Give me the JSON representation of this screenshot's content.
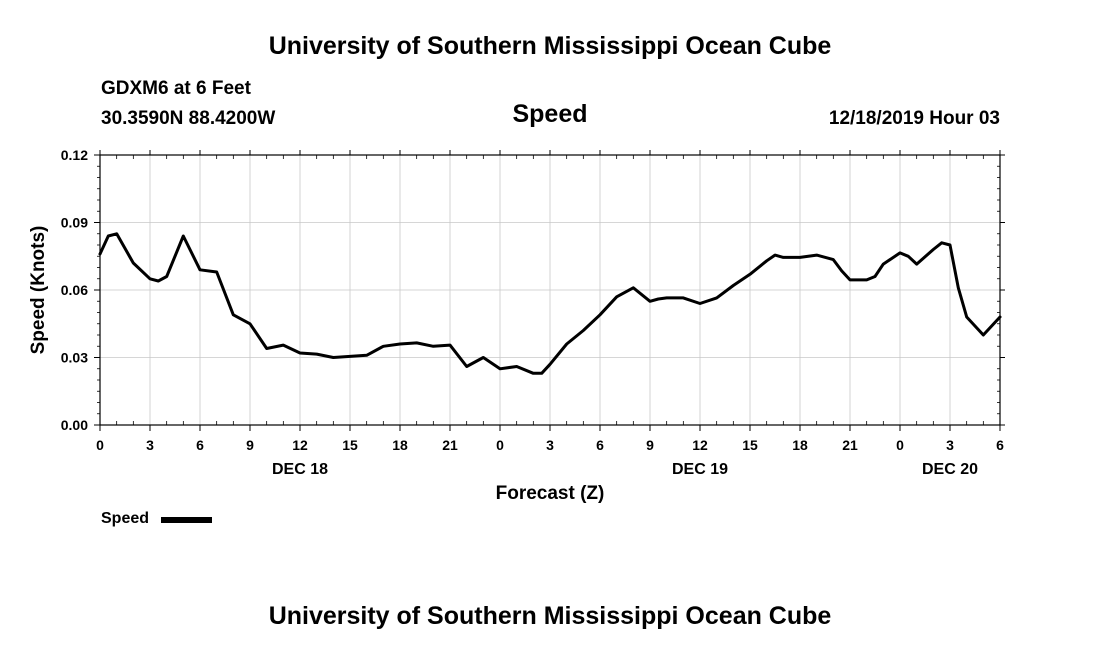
{
  "header": {
    "title_top": "University of Southern Mississippi Ocean Cube",
    "title_bottom": "University of Southern Mississippi Ocean Cube",
    "station": "GDXM6 at 6 Feet",
    "coords": "30.3590N 88.4200W",
    "variable": "Speed",
    "datetime": "12/18/2019 Hour 03"
  },
  "legend": {
    "label": "Speed",
    "color": "#000000"
  },
  "chart_data": {
    "type": "line",
    "title": "Speed",
    "xlabel": "Forecast (Z)",
    "ylabel": "Speed (Knots)",
    "xlim": [
      0,
      54
    ],
    "ylim": [
      0,
      0.12
    ],
    "grid": true,
    "y_ticks": [
      "0.00",
      "0.03",
      "0.06",
      "0.09",
      "0.12"
    ],
    "y_tick_values": [
      0,
      0.03,
      0.06,
      0.09,
      0.12
    ],
    "x_ticks": [
      "0",
      "3",
      "6",
      "9",
      "12",
      "15",
      "18",
      "21",
      "0",
      "3",
      "6",
      "9",
      "12",
      "15",
      "18",
      "21",
      "0",
      "3",
      "6"
    ],
    "date_labels": [
      {
        "label": "DEC 18",
        "hour": 12
      },
      {
        "label": "DEC 19",
        "hour": 36
      },
      {
        "label": "DEC 20",
        "hour": 51
      }
    ],
    "series": [
      {
        "name": "Speed",
        "color": "#000000",
        "x": [
          0,
          0.5,
          1,
          2,
          3,
          3.5,
          4,
          5,
          6,
          7,
          8,
          9,
          10,
          11,
          12,
          13,
          14,
          15,
          16,
          17,
          18,
          19,
          20,
          21,
          22,
          23,
          24,
          25,
          26,
          26.5,
          27,
          28,
          29,
          30,
          31,
          32,
          33,
          33.5,
          34,
          35,
          36,
          37,
          38,
          39,
          40,
          40.5,
          41,
          42,
          43,
          44,
          44.5,
          45,
          46,
          46.5,
          47,
          48,
          48.5,
          49,
          50,
          50.5,
          51,
          51.5,
          52,
          53,
          54
        ],
        "values": [
          0.076,
          0.084,
          0.085,
          0.072,
          0.065,
          0.064,
          0.066,
          0.084,
          0.069,
          0.068,
          0.049,
          0.045,
          0.034,
          0.0355,
          0.032,
          0.0315,
          0.03,
          0.0305,
          0.031,
          0.035,
          0.036,
          0.0365,
          0.035,
          0.0355,
          0.026,
          0.03,
          0.025,
          0.026,
          0.023,
          0.023,
          0.027,
          0.036,
          0.042,
          0.049,
          0.057,
          0.061,
          0.055,
          0.056,
          0.0565,
          0.0565,
          0.054,
          0.0565,
          0.062,
          0.067,
          0.073,
          0.0755,
          0.0745,
          0.0745,
          0.0755,
          0.0735,
          0.0685,
          0.0645,
          0.0645,
          0.066,
          0.0715,
          0.0765,
          0.075,
          0.0715,
          0.078,
          0.081,
          0.08,
          0.061,
          0.048,
          0.04,
          0.048
        ]
      }
    ]
  }
}
